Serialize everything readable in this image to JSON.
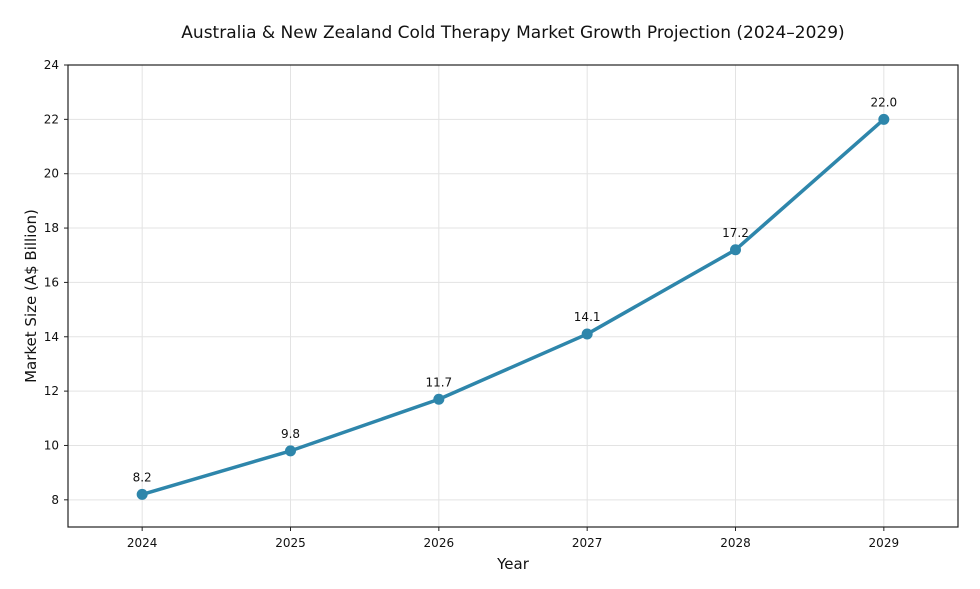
{
  "chart_data": {
    "type": "line",
    "title": "Australia & New Zealand Cold Therapy Market Growth Projection (2024–2029)",
    "xlabel": "Year",
    "ylabel": "Market Size (A$ Billion)",
    "x": [
      2024,
      2025,
      2026,
      2027,
      2028,
      2029
    ],
    "values": [
      8.2,
      9.8,
      11.7,
      14.1,
      17.2,
      22.0
    ],
    "data_labels": [
      "8.2",
      "9.8",
      "11.7",
      "14.1",
      "17.2",
      "22.0"
    ],
    "x_ticks": [
      "2024",
      "2025",
      "2026",
      "2027",
      "2028",
      "2029"
    ],
    "y_ticks": [
      "8",
      "10",
      "12",
      "14",
      "16",
      "18",
      "20",
      "22",
      "24"
    ],
    "xlim": [
      2023.5,
      2029.5
    ],
    "ylim": [
      7,
      24
    ],
    "grid": true,
    "markers": true,
    "line_color": "#2e86ab"
  }
}
